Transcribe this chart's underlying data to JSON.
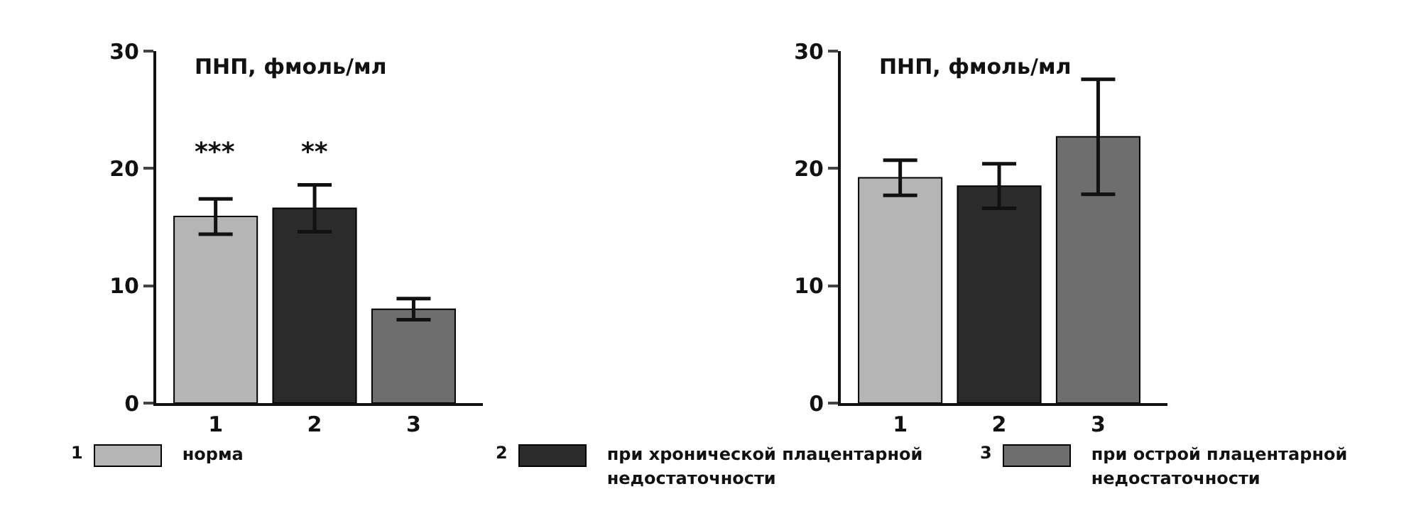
{
  "chart_data": [
    {
      "type": "bar",
      "ylabel": "ПНП, фмоль/мл",
      "categories": [
        "1",
        "2",
        "3"
      ],
      "ylim": [
        0,
        30
      ],
      "yticks": [
        0,
        10,
        20,
        30
      ],
      "legend": "bottom",
      "annotations": [
        "***",
        "**"
      ],
      "series": [
        {
          "name": "норма",
          "color": "#b5b5b5",
          "values": [
            15.9,
            null,
            null
          ],
          "errors": [
            1.5,
            null,
            null
          ]
        },
        {
          "name": "при хронической плацентарной недостаточности",
          "color": "#2b2b2b",
          "values": [
            null,
            16.6,
            null
          ],
          "errors": [
            null,
            2.0,
            null
          ]
        },
        {
          "name": "при острой плацентарной недостаточности",
          "color": "#6e6e6e",
          "values": [
            null,
            null,
            8.0
          ],
          "errors": [
            null,
            null,
            0.9
          ]
        }
      ]
    },
    {
      "type": "bar",
      "ylabel": "ПНП, фмоль/мл",
      "categories": [
        "1",
        "2",
        "3"
      ],
      "ylim": [
        0,
        30
      ],
      "yticks": [
        0,
        10,
        20,
        30
      ],
      "series": [
        {
          "color": "#b5b5b5",
          "values": [
            19.2,
            null,
            null
          ],
          "errors": [
            1.5,
            null,
            null
          ]
        },
        {
          "color": "#2b2b2b",
          "values": [
            null,
            18.5,
            null
          ],
          "errors": [
            null,
            1.9,
            null
          ]
        },
        {
          "color": "#6e6e6e",
          "values": [
            null,
            null,
            22.7
          ],
          "errors": [
            null,
            null,
            4.9
          ]
        }
      ]
    }
  ]
}
